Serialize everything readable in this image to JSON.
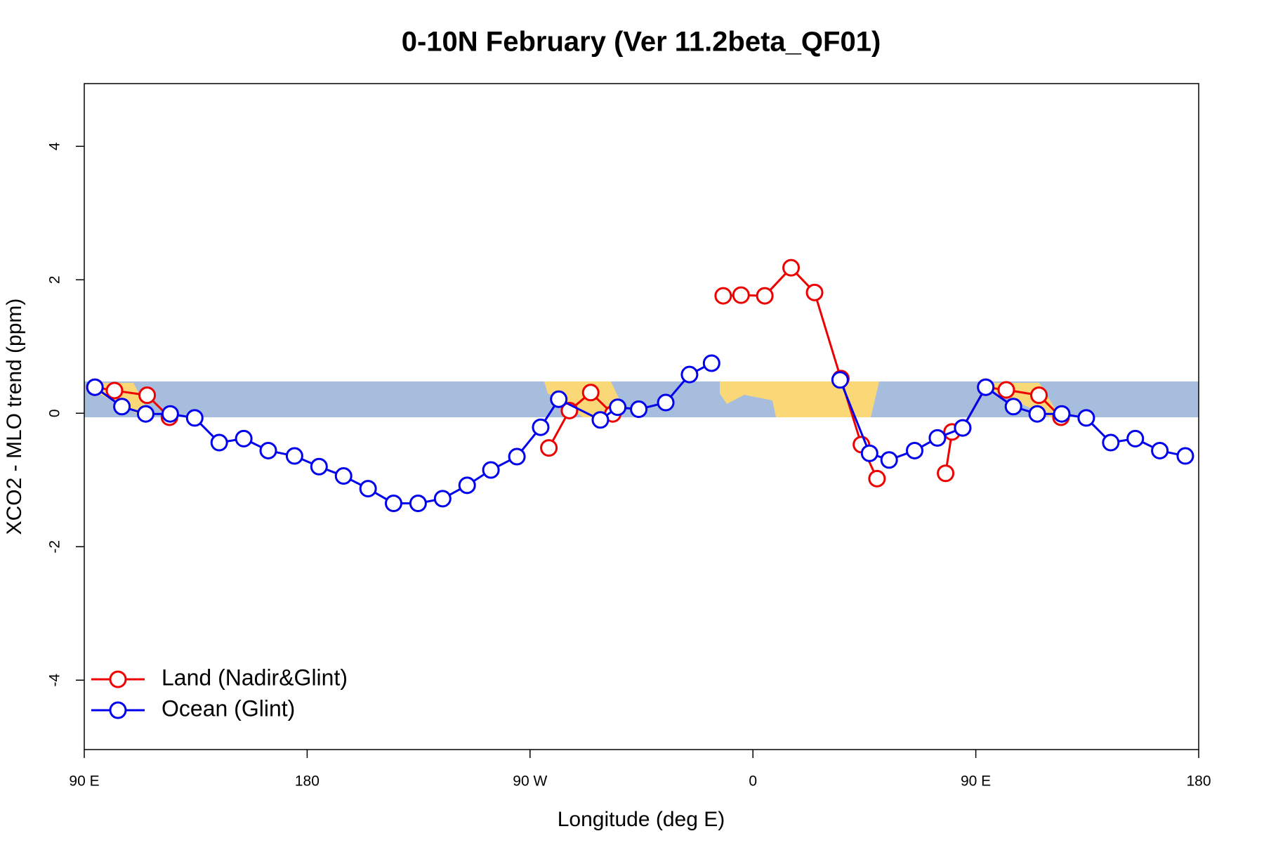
{
  "chart_data": {
    "type": "line",
    "title": "0-10N February (Ver 11.2beta_QF01)",
    "x_label": "Longitude (deg E)",
    "y_label": "XCO2 - MLO trend (ppm)",
    "xlim": [
      90,
      540
    ],
    "xticks": [
      {
        "value": 90,
        "label": "90 E"
      },
      {
        "value": 180,
        "label": "180"
      },
      {
        "value": 270,
        "label": "90 W"
      },
      {
        "value": 360,
        "label": "0"
      },
      {
        "value": 450,
        "label": "90 E"
      },
      {
        "value": 540,
        "label": "180"
      }
    ],
    "ylim": [
      -5.04,
      4.94
    ],
    "yticks": [
      -4,
      -2,
      0,
      2,
      4
    ],
    "legend": "bottomleft",
    "series": [
      {
        "name": "Land (Nadir&Glint)",
        "color": "#ee0000",
        "x": [
          94.3,
          102.2,
          115.4,
          124.4,
          null,
          277.6,
          285.9,
          294.5,
          303.4,
          null,
          348.0,
          355.2,
          364.8,
          375.4,
          384.9,
          395.5,
          403.8,
          410.1,
          null,
          437.8,
          440.4,
          444.7,
          454.0,
          462.3,
          475.5,
          484.4
        ],
        "values": [
          0.39,
          0.34,
          0.27,
          -0.06,
          null,
          -0.52,
          0.04,
          0.31,
          -0.01,
          null,
          1.76,
          1.77,
          1.76,
          2.18,
          1.81,
          0.52,
          -0.47,
          -0.98,
          null,
          -0.9,
          -0.28,
          -0.22,
          0.39,
          0.35,
          0.27,
          -0.06
        ]
      },
      {
        "name": "Ocean (Glint)",
        "color": "#0000ee",
        "x": [
          94.3,
          105.2,
          114.8,
          124.7,
          134.6,
          144.5,
          154.4,
          164.3,
          174.9,
          184.8,
          194.7,
          204.6,
          214.9,
          224.8,
          234.7,
          244.6,
          254.2,
          264.7,
          274.3,
          281.6,
          298.4,
          305.4,
          313.9,
          324.8,
          334.4,
          343.3,
          null,
          395.2,
          407.1,
          415.0,
          425.3,
          434.5,
          444.7,
          454.0,
          465.2,
          474.8,
          484.7,
          494.6,
          504.5,
          514.4,
          524.3,
          534.6
        ],
        "values": [
          0.39,
          0.1,
          -0.01,
          -0.01,
          -0.07,
          -0.44,
          -0.38,
          -0.56,
          -0.64,
          -0.8,
          -0.94,
          -1.13,
          -1.35,
          -1.35,
          -1.28,
          -1.08,
          -0.85,
          -0.65,
          -0.21,
          0.21,
          -0.1,
          0.09,
          0.06,
          0.16,
          0.58,
          0.75,
          null,
          0.5,
          -0.6,
          -0.7,
          -0.56,
          -0.37,
          -0.22,
          0.39,
          0.1,
          -0.01,
          -0.01,
          -0.07,
          -0.44,
          -0.38,
          -0.56,
          -0.64
        ]
      }
    ]
  }
}
